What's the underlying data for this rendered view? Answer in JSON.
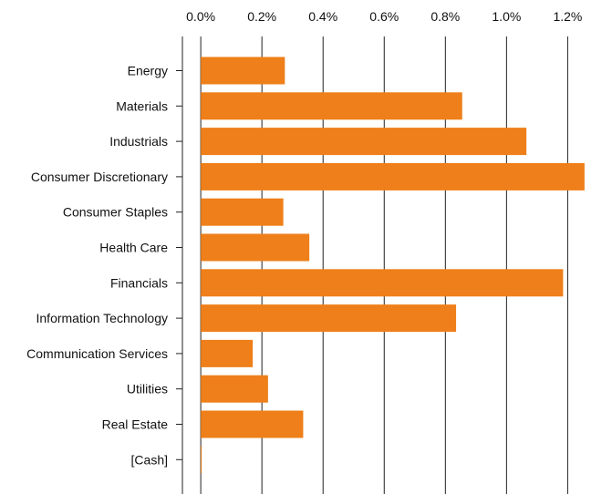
{
  "chart_data": {
    "type": "bar",
    "orientation": "horizontal",
    "categories": [
      "Energy",
      "Materials",
      "Industrials",
      "Consumer Discretionary",
      "Consumer Staples",
      "Health Care",
      "Financials",
      "Information Technology",
      "Communication Services",
      "Utilities",
      "Real Estate",
      "[Cash]"
    ],
    "values": [
      0.275,
      0.855,
      1.065,
      1.255,
      0.27,
      0.355,
      1.185,
      0.835,
      0.17,
      0.22,
      0.335,
      0.003
    ],
    "value_unit": "%",
    "xlim": [
      -0.06,
      1.33
    ],
    "x_ticks": [
      0.0,
      0.2,
      0.4,
      0.6,
      0.8,
      1.0,
      1.2
    ],
    "x_tick_labels": [
      "0.0%",
      "0.2%",
      "0.4%",
      "0.6%",
      "0.8%",
      "1.0%",
      "1.2%"
    ],
    "x_axis_position": "top",
    "grid": "vertical",
    "title": "",
    "xlabel": "",
    "ylabel": "",
    "bar_color": "#ee7f1a",
    "grid_color": "#222222"
  }
}
